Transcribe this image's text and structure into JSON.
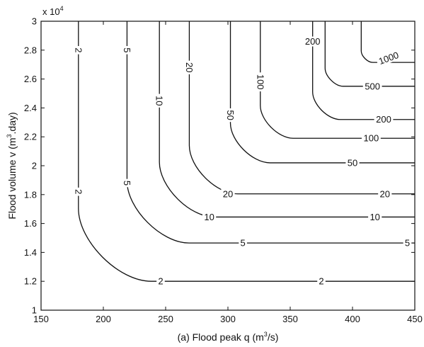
{
  "chart_data": {
    "type": "line",
    "subtype": "contour",
    "xlabel_prefix": "(a) Flood peak q (m",
    "xlabel_sup": "3",
    "xlabel_suffix": "/s)",
    "ylabel_prefix": "Flood volume v (m",
    "ylabel_sup": "3",
    "ylabel_suffix": ".day)",
    "y_multiplier_prefix": "x 10",
    "y_multiplier_exp": "4",
    "xlim": [
      150,
      450
    ],
    "ylim": [
      1,
      3
    ],
    "xticks": [
      "150",
      "200",
      "250",
      "300",
      "350",
      "400",
      "450"
    ],
    "yticks": [
      "1",
      "1.2",
      "1.4",
      "1.6",
      "1.8",
      "2",
      "2.2",
      "2.4",
      "2.6",
      "2.8",
      "3"
    ],
    "grid": false,
    "series": [
      {
        "name": "2",
        "q_asymptote": 180,
        "v_asymptote": 1.2,
        "labels": [
          {
            "label": "2",
            "x": 180,
            "y": 2.8,
            "rot": 90
          },
          {
            "label": "2",
            "x": 180,
            "y": 1.82,
            "rot": 90
          },
          {
            "label": "2",
            "x": 246,
            "y": 1.2,
            "rot": 0
          },
          {
            "label": "2",
            "x": 375,
            "y": 1.2,
            "rot": 0
          }
        ]
      },
      {
        "name": "5",
        "q_asymptote": 219,
        "v_asymptote": 1.465,
        "labels": [
          {
            "label": "5",
            "x": 219,
            "y": 2.8,
            "rot": 90
          },
          {
            "label": "5",
            "x": 219,
            "y": 1.88,
            "rot": 90
          },
          {
            "label": "5",
            "x": 312,
            "y": 1.465,
            "rot": 0
          },
          {
            "label": "5",
            "x": 444,
            "y": 1.465,
            "rot": 0
          }
        ]
      },
      {
        "name": "10",
        "q_asymptote": 245,
        "v_asymptote": 1.645,
        "labels": [
          {
            "label": "10",
            "x": 245,
            "y": 2.45,
            "rot": 90
          },
          {
            "label": "10",
            "x": 285,
            "y": 1.645,
            "rot": 0
          },
          {
            "label": "10",
            "x": 418,
            "y": 1.645,
            "rot": 0
          }
        ]
      },
      {
        "name": "20",
        "q_asymptote": 269,
        "v_asymptote": 1.805,
        "labels": [
          {
            "label": "20",
            "x": 269,
            "y": 2.68,
            "rot": 90
          },
          {
            "label": "20",
            "x": 300,
            "y": 1.805,
            "rot": 0
          },
          {
            "label": "20",
            "x": 426,
            "y": 1.805,
            "rot": 0
          }
        ]
      },
      {
        "name": "50",
        "q_asymptote": 302,
        "v_asymptote": 2.02,
        "labels": [
          {
            "label": "50",
            "x": 302,
            "y": 2.35,
            "rot": 90
          },
          {
            "label": "50",
            "x": 400,
            "y": 2.02,
            "rot": 0
          }
        ]
      },
      {
        "name": "100",
        "q_asymptote": 326,
        "v_asymptote": 2.19,
        "labels": [
          {
            "label": "100",
            "x": 326,
            "y": 2.58,
            "rot": 90
          },
          {
            "label": "100",
            "x": 415,
            "y": 2.19,
            "rot": 0
          }
        ]
      },
      {
        "name": "200",
        "q_asymptote": 368,
        "v_asymptote": 2.32,
        "labels": [
          {
            "label": "200",
            "x": 368,
            "y": 2.86,
            "rot": 0
          },
          {
            "label": "200",
            "x": 425,
            "y": 2.32,
            "rot": 0
          }
        ]
      },
      {
        "name": "500",
        "q_asymptote": 378,
        "v_asymptote": 2.55,
        "labels": [
          {
            "label": "500",
            "x": 416,
            "y": 2.55,
            "rot": 0
          }
        ]
      },
      {
        "name": "1000",
        "q_asymptote": 407,
        "v_asymptote": 2.715,
        "labels": [
          {
            "label": "1000",
            "x": 429,
            "y": 2.745,
            "rot": -20
          }
        ]
      }
    ]
  }
}
